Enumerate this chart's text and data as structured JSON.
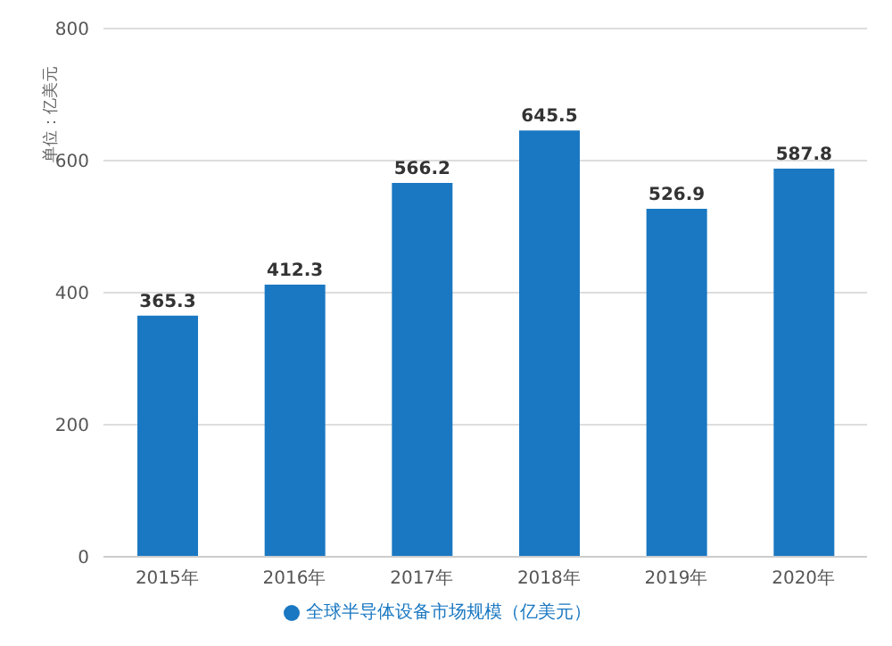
{
  "chart_data": {
    "type": "bar",
    "ylabel": "单位：亿美元",
    "categories": [
      "2015年",
      "2016年",
      "2017年",
      "2018年",
      "2019年",
      "2020年"
    ],
    "series": [
      {
        "name": "全球半导体设备市场规模（亿美元）",
        "color": "#1a78c2",
        "values": [
          365.3,
          412.3,
          566.2,
          645.5,
          526.9,
          587.8
        ]
      }
    ],
    "ylim": [
      0,
      800
    ],
    "yticks": [
      0,
      200,
      400,
      600,
      800
    ],
    "grid": "y",
    "legend": "bottom",
    "data_labels": true
  }
}
